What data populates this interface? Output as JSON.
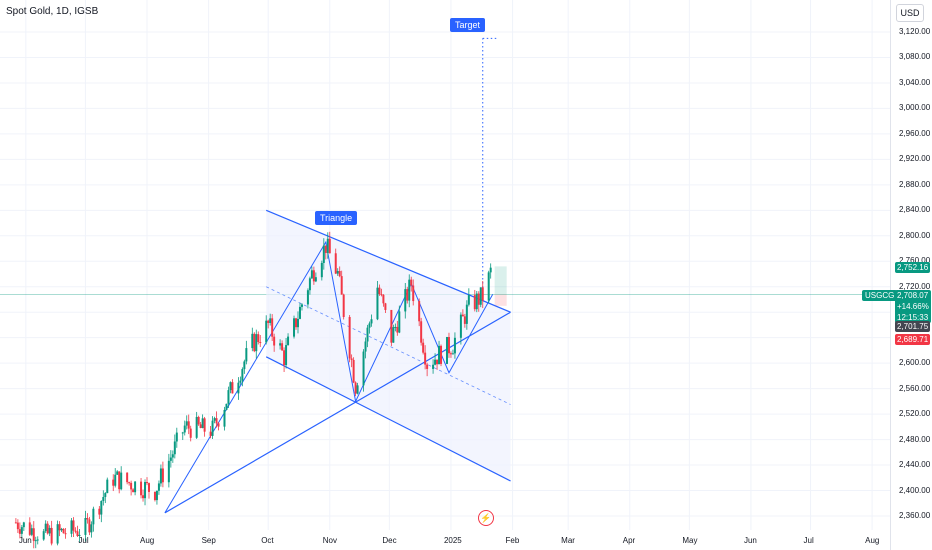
{
  "header": {
    "symbol_title": "Spot Gold, 1D, IGSB"
  },
  "price_axis": {
    "currency": "USD",
    "ticks": [
      "3,120.00",
      "3,080.00",
      "3,040.00",
      "3,000.00",
      "2,960.00",
      "2,920.00",
      "2,880.00",
      "2,840.00",
      "2,800.00",
      "2,760.00",
      "2,720.00",
      "2,680.00",
      "2,640.00",
      "2,600.00",
      "2,560.00",
      "2,520.00",
      "2,480.00",
      "2,440.00",
      "2,400.00",
      "2,360.00"
    ],
    "symbol_tag": "USGCG",
    "labels": {
      "high_marker": "2,752.16",
      "last_price": "2,708.07",
      "change": "+14.66%",
      "countdown": "12:15:33",
      "mid_price": "2,701.75",
      "stop_price": "2,689.71"
    }
  },
  "time_axis": {
    "ticks": [
      "Jun",
      "Jul",
      "Aug",
      "Sep",
      "Oct",
      "Nov",
      "Dec",
      "2025",
      "Feb",
      "Mar",
      "Apr",
      "May",
      "Jun",
      "Jul",
      "Aug"
    ]
  },
  "annotations": {
    "triangle_label": "Triangle",
    "target_label": "Target"
  },
  "colors": {
    "up": "#089981",
    "down": "#f23645",
    "drawing": "#2962ff",
    "accent": "#2962ff"
  },
  "chart_data": {
    "type": "candlestick",
    "title": "Spot Gold, 1D, IGSB",
    "ylim": [
      2340,
      3150
    ],
    "x_range": [
      "2024-05-19",
      "2025-08-10"
    ],
    "close_path": [
      [
        "2024-05-27",
        2350
      ],
      [
        "2024-06-10",
        2330
      ],
      [
        "2024-07-01",
        2340
      ],
      [
        "2024-07-15",
        2420
      ],
      [
        "2024-08-05",
        2400
      ],
      [
        "2024-08-20",
        2500
      ],
      [
        "2024-09-03",
        2495
      ],
      [
        "2024-09-23",
        2630
      ],
      [
        "2024-10-01",
        2660
      ],
      [
        "2024-10-09",
        2610
      ],
      [
        "2024-10-23",
        2740
      ],
      [
        "2024-10-30",
        2785
      ],
      [
        "2024-11-05",
        2740
      ],
      [
        "2024-11-14",
        2565
      ],
      [
        "2024-11-25",
        2720
      ],
      [
        "2024-12-02",
        2640
      ],
      [
        "2024-12-12",
        2725
      ],
      [
        "2024-12-20",
        2600
      ],
      [
        "2025-01-02",
        2630
      ],
      [
        "2025-01-10",
        2690
      ],
      [
        "2025-01-17",
        2705
      ],
      [
        "2025-01-22",
        2752
      ]
    ],
    "last_close": 2708.07,
    "annotations": [
      "Triangle",
      "Target"
    ]
  }
}
